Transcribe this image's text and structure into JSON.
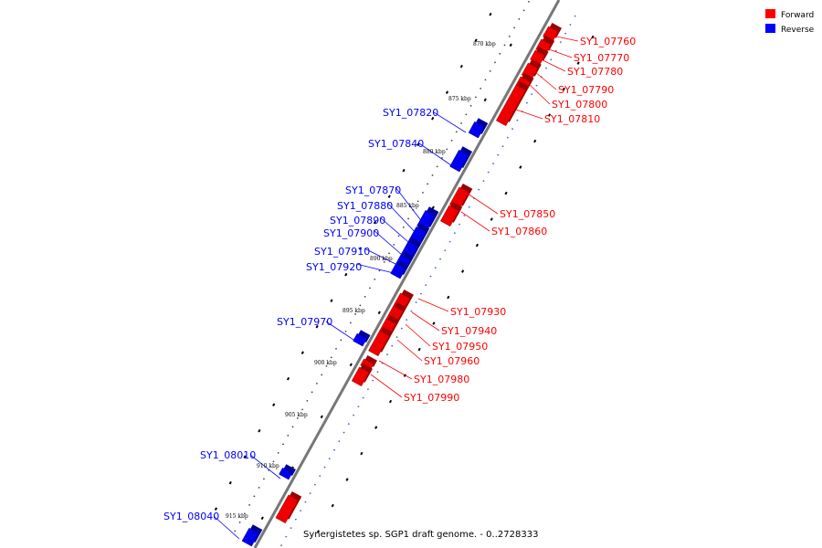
{
  "legend": {
    "forward": {
      "label": "Forward",
      "color": "#ff0000"
    },
    "reverse": {
      "label": "Reverse",
      "color": "#0000ff"
    }
  },
  "caption": "Synergistetes sp. SGP1 draft genome. - 0..2728333",
  "axis_ticks": [
    "870 kbp",
    "875 kbp",
    "880 kbp",
    "885 kbp",
    "890 kbp",
    "895 kbp",
    "900 kbp",
    "905 kbp",
    "910 kbp",
    "915 kbp"
  ],
  "genes_forward": [
    "SY1_07760",
    "SY1_07770",
    "SY1_07780",
    "SY1_07790",
    "SY1_07800",
    "SY1_07810",
    "SY1_07850",
    "SY1_07860",
    "SY1_07930",
    "SY1_07940",
    "SY1_07950",
    "SY1_07960",
    "SY1_07980",
    "SY1_07990"
  ],
  "genes_reverse": [
    "SY1_07820",
    "SY1_07840",
    "SY1_07870",
    "SY1_07880",
    "SY1_07890",
    "SY1_07900",
    "SY1_07910",
    "SY1_07920",
    "SY1_07970",
    "SY1_08010",
    "SY1_08040"
  ]
}
